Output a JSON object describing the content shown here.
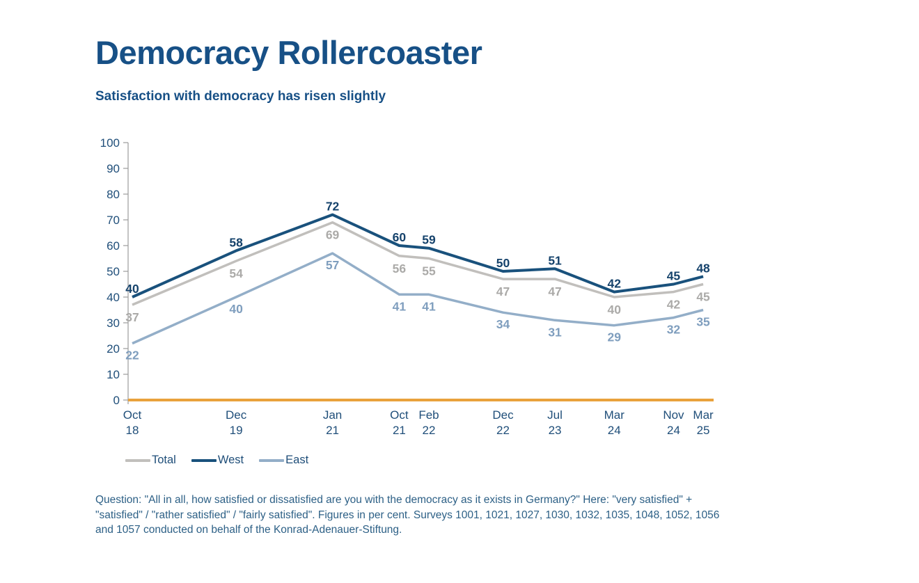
{
  "header": {
    "title": "Democracy Rollercoaster",
    "subtitle": "Satisfaction with democracy has risen slightly"
  },
  "legend": {
    "items": [
      {
        "label": "Total",
        "color": "#C1BFBC"
      },
      {
        "label": "West",
        "color": "#19517C"
      },
      {
        "label": "East",
        "color": "#93AEC8"
      }
    ]
  },
  "footnote": {
    "text": "Question: \"All in all, how satisfied or dissatisfied are you with the democracy as it exists in Germany?\" Here: \"very satisfied\" + \"satisfied\" / \"rather satisfied\" / \"fairly satisfied\". Figures in per cent. Surveys 1001, 1021, 1027, 1030, 1032, 1035, 1048, 1052, 1056 and 1057 conducted on behalf of the Konrad-Adenauer-Stiftung."
  },
  "chart_data": {
    "type": "line",
    "title": "Democracy Rollercoaster",
    "subtitle": "Satisfaction with democracy has risen slightly",
    "unit": "per cent",
    "categories": [
      {
        "month": "Oct",
        "year": "18"
      },
      {
        "month": "Dec",
        "year": "19"
      },
      {
        "month": "Jan",
        "year": "21"
      },
      {
        "month": "Oct",
        "year": "21"
      },
      {
        "month": "Feb",
        "year": "22"
      },
      {
        "month": "Dec",
        "year": "22"
      },
      {
        "month": "Jul",
        "year": "23"
      },
      {
        "month": "Mar",
        "year": "24"
      },
      {
        "month": "Nov",
        "year": "24"
      },
      {
        "month": "Mar",
        "year": "25"
      }
    ],
    "x_months_from_start": [
      0,
      14,
      27,
      36,
      40,
      50,
      57,
      65,
      73,
      77
    ],
    "series": [
      {
        "name": "Total",
        "color": "#C1BFBC",
        "label_color": "#ABAAA8",
        "values": [
          37,
          54,
          69,
          56,
          55,
          47,
          47,
          40,
          42,
          45
        ]
      },
      {
        "name": "West",
        "color": "#19517C",
        "label_color": "#16436C",
        "values": [
          40,
          58,
          72,
          60,
          59,
          50,
          51,
          42,
          45,
          48
        ]
      },
      {
        "name": "East",
        "color": "#93AEC8",
        "label_color": "#7F9EBE",
        "values": [
          22,
          40,
          57,
          41,
          41,
          34,
          31,
          29,
          32,
          35
        ]
      }
    ],
    "ylim": [
      0,
      100
    ],
    "ytick_step": 10,
    "grid": false,
    "legend_position": "bottom-left",
    "baseline_color": "#E9A23C",
    "axis_color": "#9B9B9B",
    "tick_label_color": "#1F4E79"
  }
}
